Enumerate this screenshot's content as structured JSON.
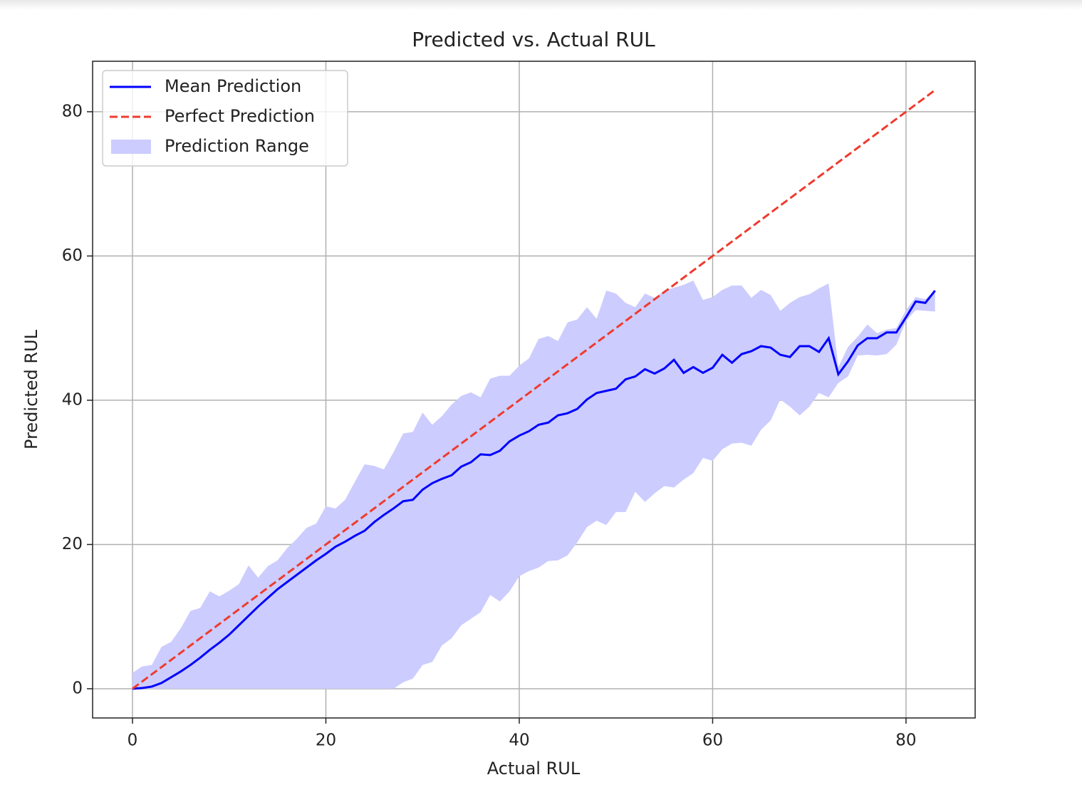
{
  "chart_data": {
    "type": "line",
    "title": "Predicted vs. Actual RUL",
    "x_label": "Actual RUL",
    "y_label": "Predicted RUL",
    "x": [
      0,
      1,
      2,
      3,
      4,
      5,
      6,
      7,
      8,
      9,
      10,
      11,
      12,
      13,
      14,
      15,
      16,
      17,
      18,
      19,
      20,
      21,
      22,
      23,
      24,
      25,
      26,
      27,
      28,
      29,
      30,
      31,
      32,
      33,
      34,
      35,
      36,
      37,
      38,
      39,
      40,
      41,
      42,
      43,
      44,
      45,
      46,
      47,
      48,
      49,
      50,
      51,
      52,
      53,
      54,
      55,
      56,
      57,
      58,
      59,
      60,
      61,
      62,
      63,
      64,
      65,
      66,
      67,
      68,
      69,
      70,
      71,
      72,
      73,
      74,
      75,
      76,
      77,
      78,
      79,
      80,
      81,
      82,
      83
    ],
    "series": [
      {
        "name": "Mean Prediction",
        "kind": "line",
        "color": "#0000ff",
        "dash": false,
        "values": [
          0,
          0.1,
          0.3,
          0.8,
          1.6,
          2.4,
          3.3,
          4.3,
          5.4,
          6.4,
          7.5,
          8.8,
          10.1,
          11.4,
          12.6,
          13.8,
          14.8,
          15.8,
          16.8,
          17.8,
          18.7,
          19.7,
          20.4,
          21.2,
          21.9,
          23.1,
          24.1,
          25.0,
          26.0,
          26.2,
          27.6,
          28.5,
          29.1,
          29.6,
          30.8,
          31.4,
          32.5,
          32.4,
          33.0,
          34.3,
          35.1,
          35.7,
          36.6,
          36.9,
          37.9,
          38.2,
          38.8,
          40.1,
          41.0,
          41.3,
          41.6,
          42.9,
          43.3,
          44.3,
          43.7,
          44.4,
          45.6,
          43.8,
          44.6,
          43.8,
          44.5,
          46.3,
          45.2,
          46.4,
          46.8,
          47.5,
          47.3,
          46.3,
          46.0,
          47.5,
          47.5,
          46.7,
          48.6,
          43.6,
          45.4,
          47.6,
          48.6,
          48.6,
          49.4,
          49.4,
          51.5,
          53.7,
          53.5,
          55.2
        ]
      },
      {
        "name": "Perfect Prediction",
        "kind": "line",
        "color": "#ee3b2e",
        "dash": true,
        "x": [
          0,
          83
        ],
        "values": [
          0,
          83
        ]
      },
      {
        "name": "Prediction Range",
        "kind": "band",
        "color": "#ccccff",
        "upper": [
          2.2,
          3.1,
          3.3,
          5.8,
          6.5,
          8.4,
          10.8,
          11.2,
          13.5,
          12.8,
          13.6,
          14.5,
          17.1,
          15.4,
          17.0,
          17.8,
          19.5,
          20.8,
          22.3,
          22.9,
          25.3,
          25.0,
          26.2,
          28.7,
          31.1,
          30.9,
          30.4,
          32.8,
          35.4,
          35.6,
          38.3,
          36.6,
          37.8,
          39.4,
          40.6,
          41.1,
          40.4,
          43.0,
          43.4,
          43.4,
          44.8,
          45.8,
          48.5,
          48.9,
          48.2,
          50.8,
          51.2,
          52.9,
          51.3,
          55.2,
          54.8,
          53.5,
          52.9,
          54.8,
          54.2,
          55.2,
          55.6,
          56.0,
          56.6,
          53.9,
          54.3,
          55.3,
          55.9,
          55.9,
          54.2,
          55.3,
          54.6,
          52.4,
          53.5,
          54.3,
          54.7,
          55.5,
          56.2,
          44.6,
          47.4,
          48.8,
          50.5,
          49.3,
          49.8,
          50.0,
          52.5,
          54.3,
          54.0,
          55.2
        ],
        "lower": [
          0,
          0,
          0,
          0,
          0,
          0,
          0,
          0,
          0,
          0,
          0,
          0,
          0,
          0,
          0,
          0,
          0,
          0,
          0,
          0,
          0,
          0,
          0,
          0,
          0,
          0,
          0,
          0,
          0.9,
          1.4,
          3.3,
          3.7,
          6.0,
          7.0,
          8.8,
          9.7,
          10.6,
          13.0,
          12.1,
          13.5,
          15.6,
          16.3,
          16.8,
          17.7,
          17.8,
          18.5,
          20.3,
          22.4,
          23.3,
          22.7,
          24.5,
          24.5,
          27.3,
          25.9,
          27.1,
          28.1,
          27.9,
          29.0,
          29.9,
          32.0,
          31.6,
          33.2,
          34.0,
          34.1,
          33.7,
          35.9,
          37.2,
          40.1,
          39.1,
          37.9,
          39.1,
          41.0,
          40.4,
          42.4,
          43.3,
          46.2,
          46.3,
          46.2,
          46.4,
          47.7,
          51.0,
          52.5,
          52.4,
          52.3
        ]
      }
    ],
    "xlim": [
      -4.125,
      87.15
    ],
    "ylim": [
      -4.05,
      87.0
    ],
    "xticks": [
      0,
      20,
      40,
      60,
      80
    ],
    "yticks": [
      0,
      20,
      40,
      60,
      80
    ],
    "grid": true,
    "legend": "upper left"
  }
}
